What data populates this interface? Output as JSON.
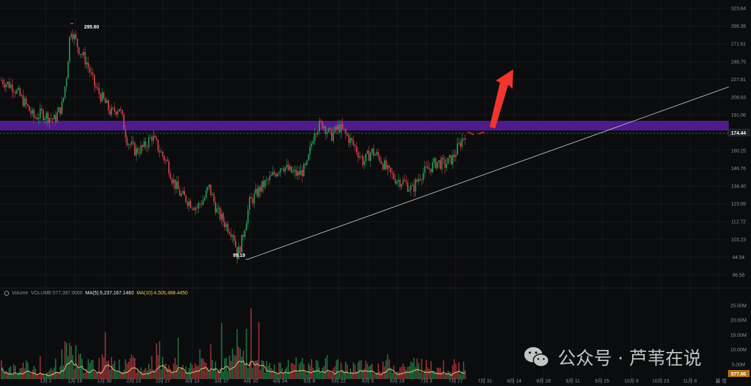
{
  "chart_data": {
    "type": "candlestick",
    "price_axis": {
      "ticks": [
        "323.84",
        "296.38",
        "271.61",
        "248.75",
        "227.81",
        "208.63",
        "191.06",
        "174.44",
        "160.25",
        "146.76",
        "134.40",
        "123.09",
        "112.72",
        "103.23",
        "94.54",
        "86.58"
      ],
      "log_scale": true
    },
    "volume_axis": {
      "ticks": [
        "25.00M",
        "20.00M",
        "15.00M",
        "10.00M",
        "5.00M"
      ]
    },
    "x_ticks": [
      "1月 2",
      "1月 16",
      "1月 30",
      "2月 13",
      "2月 27",
      "3月 13",
      "3月 27",
      "4月 10",
      "4月 24",
      "5月 8",
      "5月 22",
      "6月 5",
      "6月 19",
      "7月 3",
      "7月 17",
      "7月 31",
      "8月 14",
      "8月 28",
      "9月 11",
      "9月 25",
      "10月 9",
      "10月 23",
      "11月 6",
      "最 佳"
    ],
    "current_price": "174.44",
    "current_volume": "577.86",
    "annotations": {
      "high": "295.60",
      "low": "95.19"
    },
    "resistance_zone": {
      "low": 174.44,
      "high": 184.0,
      "color": "#5a1fa0"
    },
    "trendline": {
      "from_price": 95.19,
      "to_price": 218.0
    },
    "price_path": [
      [
        0,
        225
      ],
      [
        3,
        218
      ],
      [
        6,
        200
      ],
      [
        8,
        188
      ],
      [
        10,
        192
      ],
      [
        13,
        186
      ],
      [
        15,
        200
      ],
      [
        16,
        230
      ],
      [
        17,
        290
      ],
      [
        19,
        262
      ],
      [
        21,
        245
      ],
      [
        23,
        218
      ],
      [
        25,
        205
      ],
      [
        27,
        192
      ],
      [
        29,
        198
      ],
      [
        31,
        168
      ],
      [
        33,
        160
      ],
      [
        35,
        163
      ],
      [
        37,
        172
      ],
      [
        39,
        160
      ],
      [
        41,
        150
      ],
      [
        42,
        140
      ],
      [
        44,
        130
      ],
      [
        46,
        126
      ],
      [
        48,
        122
      ],
      [
        50,
        128
      ],
      [
        51,
        135
      ],
      [
        53,
        120
      ],
      [
        55,
        113
      ],
      [
        57,
        108
      ],
      [
        58,
        97
      ],
      [
        59,
        103
      ],
      [
        61,
        125
      ],
      [
        64,
        135
      ],
      [
        66,
        140
      ],
      [
        69,
        150
      ],
      [
        71,
        145
      ],
      [
        73,
        143
      ],
      [
        75,
        148
      ],
      [
        77,
        178
      ],
      [
        79,
        183
      ],
      [
        81,
        172
      ],
      [
        83,
        180
      ],
      [
        85,
        172
      ],
      [
        87,
        163
      ],
      [
        89,
        152
      ],
      [
        91,
        160
      ],
      [
        93,
        155
      ],
      [
        95,
        145
      ],
      [
        97,
        140
      ],
      [
        99,
        138
      ],
      [
        101,
        133
      ],
      [
        103,
        143
      ],
      [
        105,
        147
      ],
      [
        107,
        152
      ],
      [
        109,
        150
      ],
      [
        111,
        155
      ],
      [
        113,
        168
      ],
      [
        114,
        174
      ]
    ],
    "volume_profile": [
      4,
      3,
      3,
      3,
      4,
      3,
      3,
      3,
      2,
      3,
      5,
      8,
      12,
      8,
      6,
      5,
      4,
      4,
      6,
      10,
      7,
      5,
      4,
      4,
      5,
      3,
      3,
      4,
      6,
      8,
      6,
      5,
      5,
      4,
      4,
      4,
      5,
      6,
      5,
      5,
      5,
      6,
      5,
      8,
      10,
      12,
      8,
      6,
      5,
      4,
      5,
      4,
      4,
      4,
      5,
      5,
      5,
      4,
      4,
      4,
      5,
      4,
      4,
      4,
      4,
      4,
      4,
      4,
      5,
      4,
      4,
      5,
      5,
      4,
      4,
      4,
      4,
      5,
      5,
      4,
      5,
      5,
      4,
      4,
      4,
      4,
      4
    ],
    "volume_legend": {
      "prefix": "Volume",
      "volume": "VOLUME:577,397.9000",
      "ma5": "MA(5):5,237,167.1460",
      "ma10": "MA(10):4,505,488.4450"
    }
  },
  "watermark": {
    "text": "公众号 · 芦苇在说"
  }
}
